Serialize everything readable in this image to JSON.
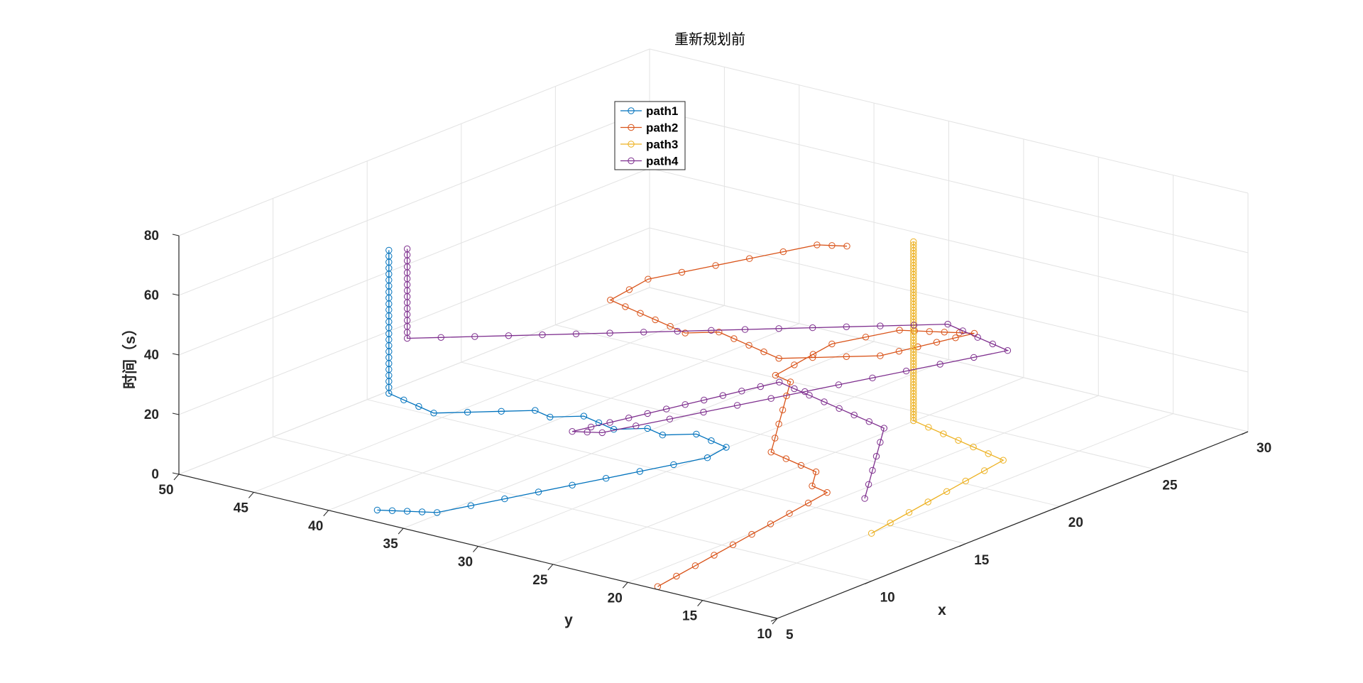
{
  "chart_data": {
    "type": "line",
    "title": "重新规划前",
    "xlabel": "x",
    "ylabel": "y",
    "zlabel": "时间（s）",
    "xlim": [
      5,
      30
    ],
    "ylim": [
      10,
      50
    ],
    "zlim": [
      0,
      80
    ],
    "x_ticks": [
      "5",
      "10",
      "15",
      "20",
      "25",
      "30"
    ],
    "y_ticks": [
      "10",
      "15",
      "20",
      "25",
      "30",
      "35",
      "40",
      "45",
      "50"
    ],
    "z_ticks": [
      "0",
      "20",
      "40",
      "60",
      "80"
    ],
    "grid": true,
    "view": "3d",
    "legend_position": "top-center",
    "series": [
      {
        "name": "path1",
        "color": "#0072BD",
        "marker": "o",
        "points": [
          [
            6,
            38,
            0
          ],
          [
            6,
            37,
            1
          ],
          [
            6,
            36,
            2
          ],
          [
            6,
            35,
            3
          ],
          [
            6,
            34,
            4
          ],
          [
            7,
            33,
            5
          ],
          [
            8,
            32,
            6
          ],
          [
            9,
            31,
            7
          ],
          [
            10,
            30,
            8
          ],
          [
            11,
            29,
            9
          ],
          [
            12,
            28,
            10
          ],
          [
            13,
            27,
            11
          ],
          [
            14,
            26,
            12
          ],
          [
            15,
            26,
            13
          ],
          [
            15,
            27,
            14
          ],
          [
            15,
            28,
            15
          ],
          [
            14,
            29,
            16
          ],
          [
            14,
            30,
            17
          ],
          [
            13,
            31,
            18
          ],
          [
            13,
            32,
            19
          ],
          [
            13,
            33,
            20
          ],
          [
            12,
            34,
            21
          ],
          [
            12,
            35,
            22
          ],
          [
            11,
            36,
            23
          ],
          [
            10,
            37,
            24
          ],
          [
            9,
            38,
            25
          ],
          [
            9,
            39,
            26
          ],
          [
            9,
            40,
            27
          ],
          [
            9,
            41,
            28
          ],
          [
            9,
            41,
            30
          ],
          [
            9,
            41,
            32
          ],
          [
            9,
            41,
            34
          ],
          [
            9,
            41,
            36
          ],
          [
            9,
            41,
            38
          ],
          [
            9,
            41,
            40
          ],
          [
            9,
            41,
            42
          ],
          [
            9,
            41,
            44
          ],
          [
            9,
            41,
            46
          ],
          [
            9,
            41,
            48
          ],
          [
            9,
            41,
            50
          ],
          [
            9,
            41,
            52
          ],
          [
            9,
            41,
            54
          ],
          [
            9,
            41,
            56
          ],
          [
            9,
            41,
            58
          ],
          [
            9,
            41,
            60
          ],
          [
            9,
            41,
            62
          ],
          [
            9,
            41,
            64
          ],
          [
            9,
            41,
            66
          ],
          [
            9,
            41,
            68
          ],
          [
            9,
            41,
            70
          ],
          [
            9,
            41,
            72
          ],
          [
            9,
            41,
            74
          ],
          [
            9,
            41,
            76
          ]
        ]
      },
      {
        "name": "path2",
        "color": "#D95319",
        "marker": "o",
        "points": [
          [
            5,
            18,
            1
          ],
          [
            6,
            18,
            2
          ],
          [
            7,
            18,
            3
          ],
          [
            8,
            18,
            4
          ],
          [
            9,
            18,
            5
          ],
          [
            10,
            18,
            6
          ],
          [
            11,
            18,
            7
          ],
          [
            12,
            18,
            8
          ],
          [
            13,
            18,
            9
          ],
          [
            14,
            18,
            10
          ],
          [
            14,
            19,
            11
          ],
          [
            15,
            20,
            12
          ],
          [
            15,
            21,
            13
          ],
          [
            15,
            22,
            14
          ],
          [
            15,
            23,
            15
          ],
          [
            16,
            24,
            16
          ],
          [
            17,
            25,
            17
          ],
          [
            18,
            26,
            18
          ],
          [
            19,
            27,
            19
          ],
          [
            20,
            28,
            20
          ],
          [
            20,
            29,
            21
          ],
          [
            21,
            29,
            22
          ],
          [
            22,
            29,
            23
          ],
          [
            23,
            29,
            24
          ],
          [
            24,
            28,
            25
          ],
          [
            25,
            27,
            26
          ],
          [
            25,
            26,
            27
          ],
          [
            25,
            25,
            28
          ],
          [
            25,
            24,
            29
          ],
          [
            25,
            23,
            30
          ],
          [
            25,
            22,
            31
          ],
          [
            24,
            22,
            32
          ],
          [
            23,
            22,
            33
          ],
          [
            22,
            22,
            34
          ],
          [
            21,
            22,
            35
          ],
          [
            20,
            22,
            36
          ],
          [
            19,
            23,
            37
          ],
          [
            18,
            24,
            38
          ],
          [
            17,
            25,
            39
          ],
          [
            17,
            26,
            40
          ],
          [
            17,
            27,
            41
          ],
          [
            17,
            28,
            42
          ],
          [
            17,
            29,
            43
          ],
          [
            16,
            30,
            44
          ],
          [
            16,
            31,
            45
          ],
          [
            16,
            32,
            46
          ],
          [
            16,
            33,
            47
          ],
          [
            16,
            34,
            48
          ],
          [
            16,
            35,
            49
          ],
          [
            17,
            35,
            50
          ],
          [
            18,
            35,
            51
          ],
          [
            19,
            34,
            52
          ],
          [
            20,
            33,
            53
          ],
          [
            21,
            32,
            54
          ],
          [
            22,
            31,
            55
          ],
          [
            23,
            30,
            56
          ],
          [
            23,
            29,
            57
          ],
          [
            23,
            28,
            58
          ]
        ]
      },
      {
        "name": "path3",
        "color": "#EDB120",
        "marker": "o",
        "points": [
          [
            10,
            10,
            16
          ],
          [
            11,
            10,
            17
          ],
          [
            12,
            10,
            18
          ],
          [
            13,
            10,
            19
          ],
          [
            14,
            10,
            20
          ],
          [
            15,
            10,
            21
          ],
          [
            16,
            10,
            22
          ],
          [
            17,
            10,
            23
          ],
          [
            17,
            11,
            24
          ],
          [
            17,
            12,
            25
          ],
          [
            17,
            13,
            26
          ],
          [
            17,
            14,
            27
          ],
          [
            17,
            15,
            28
          ],
          [
            17,
            16,
            29
          ],
          [
            17,
            16,
            30
          ],
          [
            17,
            16,
            31
          ],
          [
            17,
            16,
            32
          ],
          [
            17,
            16,
            33
          ],
          [
            17,
            16,
            34
          ],
          [
            17,
            16,
            35
          ],
          [
            17,
            16,
            36
          ],
          [
            17,
            16,
            37
          ],
          [
            17,
            16,
            38
          ],
          [
            17,
            16,
            39
          ],
          [
            17,
            16,
            40
          ],
          [
            17,
            16,
            41
          ],
          [
            17,
            16,
            42
          ],
          [
            17,
            16,
            43
          ],
          [
            17,
            16,
            44
          ],
          [
            17,
            16,
            45
          ],
          [
            17,
            16,
            46
          ],
          [
            17,
            16,
            47
          ],
          [
            17,
            16,
            48
          ],
          [
            17,
            16,
            49
          ],
          [
            17,
            16,
            50
          ],
          [
            17,
            16,
            51
          ],
          [
            17,
            16,
            52
          ],
          [
            17,
            16,
            53
          ],
          [
            17,
            16,
            54
          ],
          [
            17,
            16,
            55
          ],
          [
            17,
            16,
            56
          ],
          [
            17,
            16,
            57
          ],
          [
            17,
            16,
            58
          ],
          [
            17,
            16,
            59
          ],
          [
            17,
            16,
            60
          ],
          [
            17,
            16,
            61
          ],
          [
            17,
            16,
            62
          ],
          [
            17,
            16,
            63
          ],
          [
            17,
            16,
            64
          ],
          [
            17,
            16,
            65
          ],
          [
            17,
            16,
            66
          ],
          [
            17,
            16,
            67
          ],
          [
            17,
            16,
            68
          ],
          [
            17,
            16,
            69
          ],
          [
            17,
            16,
            70
          ],
          [
            17,
            16,
            71
          ],
          [
            17,
            16,
            72
          ],
          [
            17,
            16,
            73
          ],
          [
            17,
            16,
            74
          ],
          [
            17,
            16,
            75
          ],
          [
            17,
            16,
            76
          ],
          [
            17,
            16,
            77
          ],
          [
            17,
            16,
            78
          ],
          [
            17,
            16,
            79
          ],
          [
            17,
            16,
            80
          ],
          [
            17,
            16,
            81
          ],
          [
            17,
            16,
            82
          ],
          [
            17,
            16,
            83
          ],
          [
            17,
            16,
            84
          ],
          [
            17,
            16,
            85
          ],
          [
            17,
            16,
            86
          ],
          [
            17,
            16,
            87
          ],
          [
            17,
            16,
            88
          ],
          [
            17,
            16,
            89
          ]
        ]
      },
      {
        "name": "path4",
        "color": "#7E2F8E",
        "marker": "o",
        "points": [
          [
            16,
            18,
            3
          ],
          [
            17,
            19,
            4
          ],
          [
            18,
            20,
            5
          ],
          [
            19,
            21,
            6
          ],
          [
            20,
            22,
            7
          ],
          [
            21,
            23,
            8
          ],
          [
            21,
            24,
            9
          ],
          [
            21,
            25,
            10
          ],
          [
            21,
            26,
            11
          ],
          [
            21,
            27,
            12
          ],
          [
            21,
            28,
            13
          ],
          [
            21,
            29,
            14
          ],
          [
            21,
            30,
            15
          ],
          [
            20,
            30,
            16
          ],
          [
            19,
            30,
            17
          ],
          [
            18,
            30,
            18
          ],
          [
            17,
            30,
            19
          ],
          [
            16,
            30,
            20
          ],
          [
            15,
            30,
            21
          ],
          [
            14,
            30,
            22
          ],
          [
            13,
            30,
            23
          ],
          [
            12,
            30,
            24
          ],
          [
            11,
            30,
            25
          ],
          [
            10,
            30,
            26
          ],
          [
            10,
            29,
            27
          ],
          [
            10,
            28,
            28
          ],
          [
            11,
            27,
            29
          ],
          [
            12,
            26,
            30
          ],
          [
            13,
            25,
            31
          ],
          [
            14,
            24,
            32
          ],
          [
            15,
            23,
            33
          ],
          [
            16,
            22,
            34
          ],
          [
            17,
            21,
            35
          ],
          [
            18,
            20,
            36
          ],
          [
            19,
            19,
            37
          ],
          [
            20,
            18,
            38
          ],
          [
            21,
            17,
            39
          ],
          [
            22,
            16,
            40
          ],
          [
            22,
            17,
            41
          ],
          [
            22,
            18,
            42
          ],
          [
            22,
            19,
            43
          ],
          [
            22,
            20,
            44
          ],
          [
            21,
            21,
            45
          ],
          [
            20,
            22,
            46
          ],
          [
            19,
            23,
            47
          ],
          [
            18,
            24,
            48
          ],
          [
            17,
            25,
            49
          ],
          [
            16,
            26,
            50
          ],
          [
            15,
            27,
            51
          ],
          [
            14,
            28,
            52
          ],
          [
            13,
            29,
            53
          ],
          [
            12,
            30,
            54
          ],
          [
            11,
            31,
            55
          ],
          [
            10,
            32,
            56
          ],
          [
            9,
            33,
            57
          ],
          [
            8,
            34,
            58
          ],
          [
            7,
            35,
            59
          ],
          [
            6,
            36,
            60
          ],
          [
            6,
            36,
            62
          ],
          [
            6,
            36,
            64
          ],
          [
            6,
            36,
            66
          ],
          [
            6,
            36,
            68
          ],
          [
            6,
            36,
            70
          ],
          [
            6,
            36,
            72
          ],
          [
            6,
            36,
            74
          ],
          [
            6,
            36,
            76
          ],
          [
            6,
            36,
            78
          ],
          [
            6,
            36,
            80
          ],
          [
            6,
            36,
            82
          ],
          [
            6,
            36,
            84
          ],
          [
            6,
            36,
            86
          ],
          [
            6,
            36,
            88
          ],
          [
            6,
            36,
            90
          ]
        ]
      }
    ]
  }
}
